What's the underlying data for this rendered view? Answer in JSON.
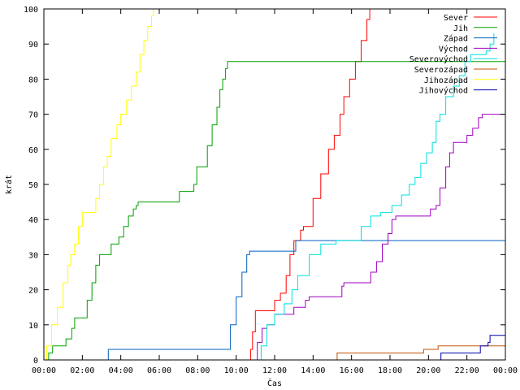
{
  "chart_data": {
    "type": "line",
    "title": "",
    "xlabel": "Čas",
    "ylabel": "krát",
    "xlim": [
      0,
      24
    ],
    "ylim": [
      0,
      100
    ],
    "x_ticks": [
      {
        "value": 0,
        "label": "00:00"
      },
      {
        "value": 2,
        "label": "02:00"
      },
      {
        "value": 4,
        "label": "04:00"
      },
      {
        "value": 6,
        "label": "06:00"
      },
      {
        "value": 8,
        "label": "08:00"
      },
      {
        "value": 10,
        "label": "10:00"
      },
      {
        "value": 12,
        "label": "12:00"
      },
      {
        "value": 14,
        "label": "14:00"
      },
      {
        "value": 16,
        "label": "16:00"
      },
      {
        "value": 18,
        "label": "18:00"
      },
      {
        "value": 20,
        "label": "20:00"
      },
      {
        "value": 22,
        "label": "22:00"
      },
      {
        "value": 24,
        "label": "00:00"
      }
    ],
    "y_ticks": [
      0,
      10,
      20,
      30,
      40,
      50,
      60,
      70,
      80,
      90,
      100
    ],
    "grid": false,
    "legend_position": "top-right",
    "series": [
      {
        "name": "Sever",
        "color": "#ff0000",
        "points": [
          [
            10.6,
            0
          ],
          [
            10.75,
            3
          ],
          [
            10.85,
            8
          ],
          [
            11.0,
            14
          ],
          [
            11.7,
            14
          ],
          [
            12.0,
            17
          ],
          [
            12.3,
            19
          ],
          [
            12.6,
            24
          ],
          [
            12.8,
            30
          ],
          [
            13.0,
            34
          ],
          [
            13.35,
            37
          ],
          [
            13.5,
            38
          ],
          [
            13.8,
            38
          ],
          [
            14.0,
            46
          ],
          [
            14.4,
            53
          ],
          [
            14.8,
            60
          ],
          [
            15.1,
            64
          ],
          [
            15.4,
            70
          ],
          [
            15.6,
            75
          ],
          [
            15.9,
            80
          ],
          [
            16.2,
            85
          ],
          [
            16.5,
            91
          ],
          [
            16.8,
            97
          ],
          [
            16.95,
            100
          ]
        ]
      },
      {
        "name": "Jih",
        "color": "#00a000",
        "points": [
          [
            0.0,
            0
          ],
          [
            0.25,
            2
          ],
          [
            0.45,
            4
          ],
          [
            1.0,
            4
          ],
          [
            1.15,
            6
          ],
          [
            1.45,
            9
          ],
          [
            1.6,
            12
          ],
          [
            2.0,
            12
          ],
          [
            2.25,
            17
          ],
          [
            2.5,
            22
          ],
          [
            2.7,
            27
          ],
          [
            2.9,
            30
          ],
          [
            3.4,
            30
          ],
          [
            3.5,
            33
          ],
          [
            3.8,
            33
          ],
          [
            3.9,
            35
          ],
          [
            4.15,
            38
          ],
          [
            4.4,
            41
          ],
          [
            4.65,
            43
          ],
          [
            4.8,
            44
          ],
          [
            4.9,
            45
          ],
          [
            6.9,
            45
          ],
          [
            7.05,
            48
          ],
          [
            7.6,
            48
          ],
          [
            7.8,
            50
          ],
          [
            7.95,
            55
          ],
          [
            8.2,
            55
          ],
          [
            8.5,
            61
          ],
          [
            8.75,
            67
          ],
          [
            9.0,
            72
          ],
          [
            9.15,
            77
          ],
          [
            9.3,
            80
          ],
          [
            9.45,
            83
          ],
          [
            9.55,
            85
          ],
          [
            24.0,
            85
          ]
        ]
      },
      {
        "name": "Západ",
        "color": "#0060c0",
        "points": [
          [
            3.3,
            0
          ],
          [
            3.35,
            3
          ],
          [
            9.5,
            3
          ],
          [
            9.7,
            10
          ],
          [
            10.0,
            18
          ],
          [
            10.3,
            25
          ],
          [
            10.55,
            30
          ],
          [
            10.7,
            31
          ],
          [
            13.0,
            31
          ],
          [
            13.1,
            34
          ],
          [
            24.0,
            34
          ]
        ]
      },
      {
        "name": "Východ",
        "color": "#a000c0",
        "points": [
          [
            10.9,
            0
          ],
          [
            11.1,
            5
          ],
          [
            11.35,
            9
          ],
          [
            11.6,
            10
          ],
          [
            12.0,
            13
          ],
          [
            12.8,
            13
          ],
          [
            13.0,
            15
          ],
          [
            13.6,
            17
          ],
          [
            13.8,
            18
          ],
          [
            15.3,
            18
          ],
          [
            15.5,
            21
          ],
          [
            15.6,
            22
          ],
          [
            16.8,
            22
          ],
          [
            17.0,
            25
          ],
          [
            17.3,
            28
          ],
          [
            17.6,
            33
          ],
          [
            17.9,
            36
          ],
          [
            18.1,
            40
          ],
          [
            18.3,
            41
          ],
          [
            19.9,
            41
          ],
          [
            20.1,
            43
          ],
          [
            20.4,
            44
          ],
          [
            20.6,
            49
          ],
          [
            20.9,
            55
          ],
          [
            21.1,
            59
          ],
          [
            21.3,
            62
          ],
          [
            21.8,
            62
          ],
          [
            22.0,
            64
          ],
          [
            22.3,
            66
          ],
          [
            22.6,
            69
          ],
          [
            22.8,
            70
          ],
          [
            23.9,
            70
          ]
        ]
      },
      {
        "name": "Severovýchod",
        "color": "#00e0e0",
        "points": [
          [
            11.05,
            0
          ],
          [
            11.3,
            4
          ],
          [
            11.6,
            10
          ],
          [
            12.0,
            13
          ],
          [
            12.5,
            16
          ],
          [
            12.9,
            20
          ],
          [
            13.2,
            24
          ],
          [
            13.6,
            24
          ],
          [
            13.8,
            30
          ],
          [
            14.4,
            33
          ],
          [
            15.2,
            34
          ],
          [
            16.5,
            38
          ],
          [
            17.0,
            41
          ],
          [
            17.5,
            42
          ],
          [
            18.1,
            44
          ],
          [
            18.6,
            47
          ],
          [
            19.0,
            50
          ],
          [
            19.3,
            52
          ],
          [
            19.6,
            56
          ],
          [
            19.9,
            59
          ],
          [
            20.2,
            62
          ],
          [
            20.4,
            68
          ],
          [
            20.6,
            70
          ],
          [
            20.9,
            75
          ],
          [
            21.3,
            78
          ],
          [
            21.6,
            81
          ],
          [
            21.9,
            85
          ],
          [
            22.2,
            87
          ],
          [
            23.0,
            88
          ],
          [
            23.2,
            90
          ],
          [
            23.4,
            93
          ]
        ]
      },
      {
        "name": "Severozápad",
        "color": "#c05000",
        "points": [
          [
            15.2,
            0
          ],
          [
            15.25,
            2
          ],
          [
            19.7,
            2
          ],
          [
            19.75,
            3
          ],
          [
            20.5,
            4
          ],
          [
            24.0,
            4
          ]
        ]
      },
      {
        "name": "Jihozápad",
        "color": "#ffff00",
        "points": [
          [
            0.0,
            0
          ],
          [
            0.15,
            4
          ],
          [
            0.4,
            10
          ],
          [
            0.7,
            15
          ],
          [
            1.0,
            22
          ],
          [
            1.25,
            27
          ],
          [
            1.4,
            30
          ],
          [
            1.6,
            33
          ],
          [
            1.8,
            38
          ],
          [
            2.0,
            42
          ],
          [
            2.55,
            42
          ],
          [
            2.7,
            46
          ],
          [
            2.9,
            50
          ],
          [
            3.1,
            55
          ],
          [
            3.3,
            58
          ],
          [
            3.5,
            63
          ],
          [
            3.8,
            67
          ],
          [
            4.0,
            70
          ],
          [
            4.3,
            74
          ],
          [
            4.55,
            78
          ],
          [
            4.8,
            82
          ],
          [
            5.0,
            87
          ],
          [
            5.2,
            91
          ],
          [
            5.4,
            95
          ],
          [
            5.6,
            98
          ],
          [
            5.7,
            100
          ]
        ]
      },
      {
        "name": "Jihovýchod",
        "color": "#0000b0",
        "points": [
          [
            20.6,
            0
          ],
          [
            20.65,
            2
          ],
          [
            22.6,
            2
          ],
          [
            22.7,
            4
          ],
          [
            23.1,
            5
          ],
          [
            23.2,
            7
          ],
          [
            24.0,
            7
          ]
        ]
      }
    ]
  }
}
